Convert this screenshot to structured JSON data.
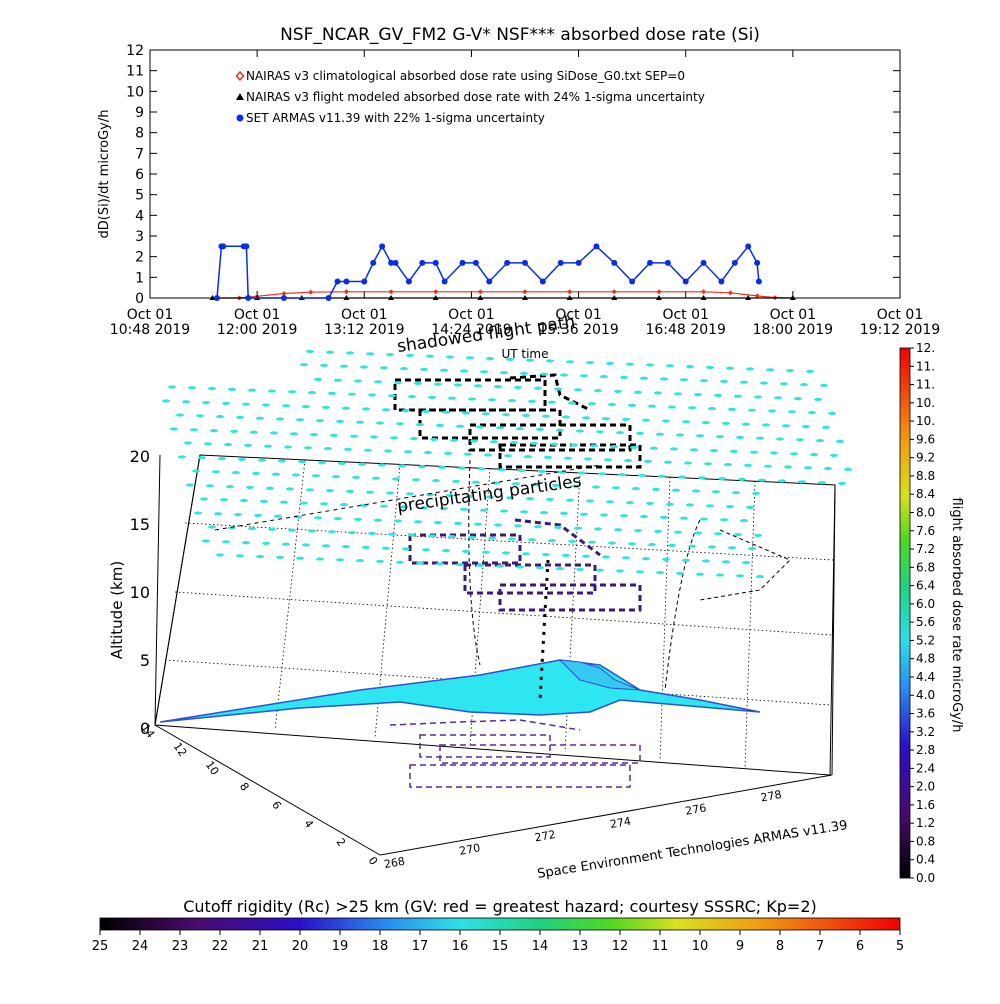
{
  "title": "NSF_NCAR_GV_FM2 G-V* NSF*** absorbed dose rate (Si)",
  "colors": {
    "nairas_climatological": "#e8311a",
    "nairas_flight": "#000000",
    "armas": "#0a2ee8",
    "precip_field": "#2ee6e0",
    "surface": "#2ee6f0"
  },
  "chart_data": [
    {
      "type": "line",
      "ylabel": "dD(Si)/dt microGy/h",
      "xlabel": "UT time",
      "ylim": [
        0,
        12
      ],
      "yticks": [
        "0",
        "1",
        "2",
        "3",
        "4",
        "5",
        "6",
        "7",
        "8",
        "9",
        "10",
        "11",
        "12"
      ],
      "xticks": [
        {
          "line1": "Oct 01",
          "line2": "10:48 2019"
        },
        {
          "line1": "Oct 01",
          "line2": "12:00 2019"
        },
        {
          "line1": "Oct 01",
          "line2": "13:12 2019"
        },
        {
          "line1": "Oct 01",
          "line2": "14:24 2019"
        },
        {
          "line1": "Oct 01",
          "line2": "15:36 2019"
        },
        {
          "line1": "Oct 01",
          "line2": "16:48 2019"
        },
        {
          "line1": "Oct 01",
          "line2": "18:00 2019"
        },
        {
          "line1": "Oct 01",
          "line2": "19:12 2019"
        }
      ],
      "legend": [
        {
          "symbol": "diamond",
          "color": "#e8311a",
          "text": "NAIRAS v3 climatological absorbed dose rate using SiDose_G0.txt SEP=0"
        },
        {
          "symbol": "triangle",
          "color": "#000000",
          "text": "NAIRAS v3 flight modeled absorbed dose rate with 24% 1-sigma uncertainty"
        },
        {
          "symbol": "circle",
          "color": "#0a2ee8",
          "text": "SET ARMAS v11.39 with 22% 1-sigma uncertainty"
        }
      ],
      "series": [
        {
          "key": "nairas_climatological",
          "x_hours": [
            11.5,
            11.8,
            12.0,
            12.3,
            12.6,
            13.0,
            13.5,
            14.0,
            14.5,
            15.0,
            15.5,
            16.0,
            16.5,
            17.0,
            17.3,
            17.6,
            17.8,
            18.0
          ],
          "values": [
            0,
            0,
            0.08,
            0.22,
            0.28,
            0.3,
            0.3,
            0.3,
            0.3,
            0.3,
            0.3,
            0.3,
            0.3,
            0.3,
            0.25,
            0.1,
            0.02,
            0
          ]
        },
        {
          "key": "nairas_flight",
          "x_hours": [
            11.5,
            12.0,
            12.5,
            13.0,
            13.5,
            14.0,
            14.5,
            15.0,
            15.5,
            16.0,
            16.5,
            17.0,
            17.5,
            18.0
          ],
          "values": [
            0,
            0,
            0,
            0,
            0,
            0,
            0,
            0,
            0,
            0,
            0,
            0,
            0,
            0
          ]
        },
        {
          "key": "armas",
          "x_hours": [
            11.55,
            11.6,
            11.62,
            11.85,
            11.88,
            11.9,
            12.3,
            12.8,
            12.9,
            13.0,
            13.2,
            13.3,
            13.4,
            13.5,
            13.55,
            13.7,
            13.85,
            14.0,
            14.1,
            14.3,
            14.45,
            14.6,
            14.8,
            15.0,
            15.2,
            15.4,
            15.6,
            15.8,
            16.0,
            16.2,
            16.4,
            16.6,
            16.8,
            17.0,
            17.2,
            17.35,
            17.5,
            17.6,
            17.62
          ],
          "values": [
            0,
            2.5,
            2.5,
            2.5,
            2.5,
            0,
            0,
            0,
            0.8,
            0.8,
            0.8,
            1.7,
            2.5,
            1.7,
            1.7,
            0.8,
            1.7,
            1.7,
            0.8,
            1.7,
            1.7,
            0.8,
            1.7,
            1.7,
            0.8,
            1.7,
            1.7,
            2.5,
            1.7,
            0.8,
            1.7,
            1.7,
            0.8,
            1.7,
            0.8,
            1.7,
            2.5,
            1.7,
            0.8
          ]
        }
      ]
    },
    {
      "type": "scatter",
      "ylabel": "Altitude (km)",
      "zticks": [
        "0",
        "5",
        "10",
        "15",
        "20"
      ],
      "latitude_ticks": [
        "0",
        "2",
        "4",
        "6",
        "8",
        "10",
        "12",
        "14"
      ],
      "longitude_ticks": [
        "268",
        "270",
        "272",
        "274",
        "276",
        "278"
      ],
      "annotations": [
        "shadowed flight path",
        "precipitating particles",
        "Space Environment Technologies ARMAS v11.39"
      ]
    },
    {
      "type": "heatmap",
      "label": "flight absorbed dose rate microGy/h",
      "ticks": [
        "0.0",
        "0.4",
        "0.8",
        "1.2",
        "1.6",
        "2.0",
        "2.4",
        "2.8",
        "3.2",
        "3.6",
        "4.0",
        "4.4",
        "4.8",
        "5.2",
        "5.6",
        "6.0",
        "6.4",
        "6.8",
        "7.2",
        "7.6",
        "8.0",
        "8.4",
        "8.8",
        "9.2",
        "9.6",
        "10.",
        "10.",
        "11.",
        "11.",
        "12."
      ]
    },
    {
      "type": "heatmap",
      "label": "Cutoff rigidity (Rc) >25 km (GV: red = greatest hazard; courtesy SSSRC; Kp=2)",
      "ticks": [
        "25",
        "24",
        "23",
        "22",
        "21",
        "20",
        "19",
        "18",
        "17",
        "16",
        "15",
        "14",
        "13",
        "12",
        "11",
        "10",
        "9",
        "8",
        "7",
        "6",
        "5"
      ]
    }
  ]
}
